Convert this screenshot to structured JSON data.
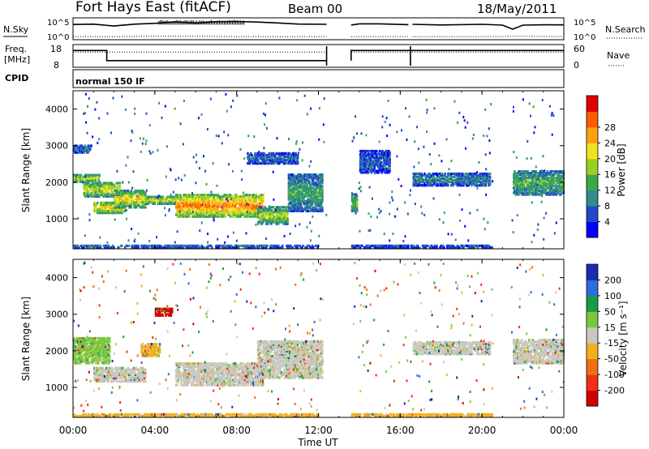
{
  "header": {
    "station": "Fort Hays East (fitACF)",
    "beam": "Beam 00",
    "date": "18/May/2011"
  },
  "side_labels": {
    "nsky": "N.Sky",
    "nsearch": "N.Search",
    "freq_line1": "Freq.",
    "freq_line2": "[MHz]",
    "nave": "Nave",
    "cpid": "CPID",
    "cpid_value": "normal 150 IF"
  },
  "chart_data": [
    {
      "type": "line",
      "panel": "noise",
      "left_axis": {
        "label": "N.Sky",
        "ticks": [
          "10^5",
          "10^0"
        ]
      },
      "right_axis": {
        "label": "N.Search",
        "ticks": [
          "10^5",
          "10^0"
        ]
      },
      "xlim": [
        0,
        24
      ],
      "gaps_hours": [
        [
          12.4,
          13.6
        ],
        [
          16.4,
          16.6
        ]
      ],
      "series": [
        {
          "name": "N.Sky",
          "style": "solid",
          "x": [
            0,
            1,
            2,
            3,
            4,
            5,
            6,
            7,
            8,
            9,
            10,
            11,
            12.4,
            13.6,
            14,
            15,
            16.4,
            16.6,
            18,
            20,
            21,
            21.5,
            22,
            23,
            24
          ],
          "y_log10": [
            3.6,
            3.8,
            3.2,
            3.6,
            3.9,
            4.3,
            4.1,
            4.3,
            4.4,
            4.2,
            4.0,
            3.8,
            3.6,
            3.6,
            3.8,
            3.9,
            3.7,
            3.6,
            3.4,
            3.6,
            3.6,
            2.4,
            3.4,
            3.6,
            3.6
          ]
        },
        {
          "name": "N.Search",
          "style": "dotted",
          "x": [
            0,
            2,
            4,
            6,
            8,
            10,
            12.4,
            13.6,
            16.4,
            16.6,
            20,
            22,
            24
          ],
          "y_log10": [
            0.4,
            0.4,
            0.5,
            0.5,
            0.4,
            0.4,
            0.4,
            0.4,
            0.4,
            0.4,
            0.4,
            0.5,
            0.4
          ]
        }
      ]
    },
    {
      "type": "line",
      "panel": "frequency",
      "left_axis": {
        "label": "Freq. [MHz]",
        "ticks": [
          "18",
          "8"
        ],
        "ylim": [
          8,
          18
        ]
      },
      "right_axis": {
        "label": "Nave",
        "ticks": [
          "60",
          "0"
        ],
        "ylim": [
          0,
          60
        ]
      },
      "xlim": [
        0,
        24
      ],
      "series": [
        {
          "name": "Freq.",
          "style": "solid",
          "x": [
            0,
            1.65,
            1.65,
            12.4,
            13.6,
            13.6,
            16.5,
            16.5,
            24
          ],
          "y": [
            15.8,
            15.8,
            10.6,
            10.6,
            10.6,
            15.8,
            15.8,
            15.8,
            15.8
          ]
        },
        {
          "name": "Nave",
          "style": "dotted",
          "x": [
            0,
            12.4,
            13.6,
            16.4,
            16.6,
            24
          ],
          "y": [
            42,
            42,
            42,
            42,
            42,
            42
          ]
        }
      ]
    },
    {
      "type": "heatmap",
      "panel": "power",
      "title": "",
      "xlabel": "",
      "ylabel": "Slant Range [km]",
      "xlim": [
        0,
        24
      ],
      "ylim": [
        180,
        4500
      ],
      "yticks": [
        "1000",
        "2000",
        "3000",
        "4000"
      ],
      "colorbar": {
        "label": "Power [dB]",
        "ticks": [
          "4",
          "8",
          "12",
          "16",
          "20",
          "24",
          "28"
        ],
        "range": [
          0,
          30
        ],
        "colors": [
          "#0000ff",
          "#2048c8",
          "#308c8c",
          "#3aa84a",
          "#9ad020",
          "#f0e020",
          "#ffa010",
          "#ff5a00",
          "#e00000"
        ]
      },
      "bands": [
        {
          "x": [
            0.0,
            1.3
          ],
          "y": [
            2050,
            2250
          ],
          "level": 0.55
        },
        {
          "x": [
            0.5,
            2.3
          ],
          "y": [
            1650,
            2050
          ],
          "level": 0.6
        },
        {
          "x": [
            1.0,
            2.5
          ],
          "y": [
            1200,
            1500
          ],
          "level": 0.7
        },
        {
          "x": [
            2.0,
            3.5
          ],
          "y": [
            1350,
            1800
          ],
          "level": 0.65
        },
        {
          "x": [
            3.5,
            5.0
          ],
          "y": [
            1450,
            1650
          ],
          "level": 0.6
        },
        {
          "x": [
            5.0,
            9.3
          ],
          "y": [
            1100,
            1700
          ],
          "level": 0.85
        },
        {
          "x": [
            9.0,
            10.5
          ],
          "y": [
            900,
            1350
          ],
          "level": 0.55
        },
        {
          "x": [
            10.5,
            12.2
          ],
          "y": [
            1250,
            2250
          ],
          "level": 0.35
        },
        {
          "x": [
            0.0,
            12.0
          ],
          "y": [
            250,
            330
          ],
          "level": 0.2
        },
        {
          "x": [
            0.0,
            0.9
          ],
          "y": [
            2850,
            3050
          ],
          "level": 0.2
        },
        {
          "x": [
            8.5,
            11.0
          ],
          "y": [
            2550,
            2850
          ],
          "level": 0.2
        },
        {
          "x": [
            13.6,
            13.9
          ],
          "y": [
            1250,
            1700
          ],
          "level": 0.45
        },
        {
          "x": [
            14.0,
            15.5
          ],
          "y": [
            2300,
            2900
          ],
          "level": 0.15
        },
        {
          "x": [
            16.6,
            20.4
          ],
          "y": [
            1950,
            2300
          ],
          "level": 0.25
        },
        {
          "x": [
            21.5,
            24.0
          ],
          "y": [
            1700,
            2350
          ],
          "level": 0.4
        },
        {
          "x": [
            13.6,
            20.5
          ],
          "y": [
            250,
            330
          ],
          "level": 0.15
        }
      ]
    },
    {
      "type": "heatmap",
      "panel": "velocity",
      "title": "",
      "xlabel": "Time UT",
      "ylabel": "Slant Range [km]",
      "xlim": [
        0,
        24
      ],
      "ylim": [
        180,
        4500
      ],
      "xticks": [
        "00:00",
        "04:00",
        "08:00",
        "12:00",
        "16:00",
        "20:00",
        "00:00"
      ],
      "yticks": [
        "1000",
        "2000",
        "3000",
        "4000"
      ],
      "colorbar": {
        "label": "Velocity [m s⁻¹]",
        "ticks": [
          "200",
          "100",
          "50",
          "15",
          "-15",
          "-50",
          "-100",
          "-200"
        ],
        "range": [
          -250,
          250
        ],
        "colors": [
          "#1a2ab0",
          "#2a6ed8",
          "#1a9a4a",
          "#7ac83a",
          "#c8c8c0",
          "#f2b020",
          "#f07010",
          "#f03018",
          "#d00000"
        ]
      },
      "bands": [
        {
          "x": [
            0.0,
            1.8
          ],
          "y": [
            1700,
            2400
          ],
          "level": 0.4
        },
        {
          "x": [
            1.0,
            3.5
          ],
          "y": [
            1200,
            1600
          ],
          "level": 0.45
        },
        {
          "x": [
            3.3,
            4.2
          ],
          "y": [
            1900,
            2250
          ],
          "level": 0.6
        },
        {
          "x": [
            5.0,
            9.3
          ],
          "y": [
            1100,
            1700
          ],
          "level": 0.55
        },
        {
          "x": [
            9.0,
            12.2
          ],
          "y": [
            1300,
            2300
          ],
          "level": 0.45
        },
        {
          "x": [
            0.0,
            12.0
          ],
          "y": [
            250,
            330
          ],
          "level": 0.62
        },
        {
          "x": [
            13.6,
            20.5
          ],
          "y": [
            250,
            330
          ],
          "level": 0.62
        },
        {
          "x": [
            16.6,
            20.4
          ],
          "y": [
            1950,
            2300
          ],
          "level": 0.45
        },
        {
          "x": [
            21.5,
            24.0
          ],
          "y": [
            1700,
            2350
          ],
          "level": 0.45
        },
        {
          "x": [
            4.0,
            4.8
          ],
          "y": [
            3000,
            3200
          ],
          "level": 0.95
        }
      ]
    }
  ],
  "x_axis": {
    "ticks": [
      "00:00",
      "04:00",
      "08:00",
      "12:00",
      "16:00",
      "20:00",
      "00:00"
    ],
    "label": "Time UT"
  }
}
